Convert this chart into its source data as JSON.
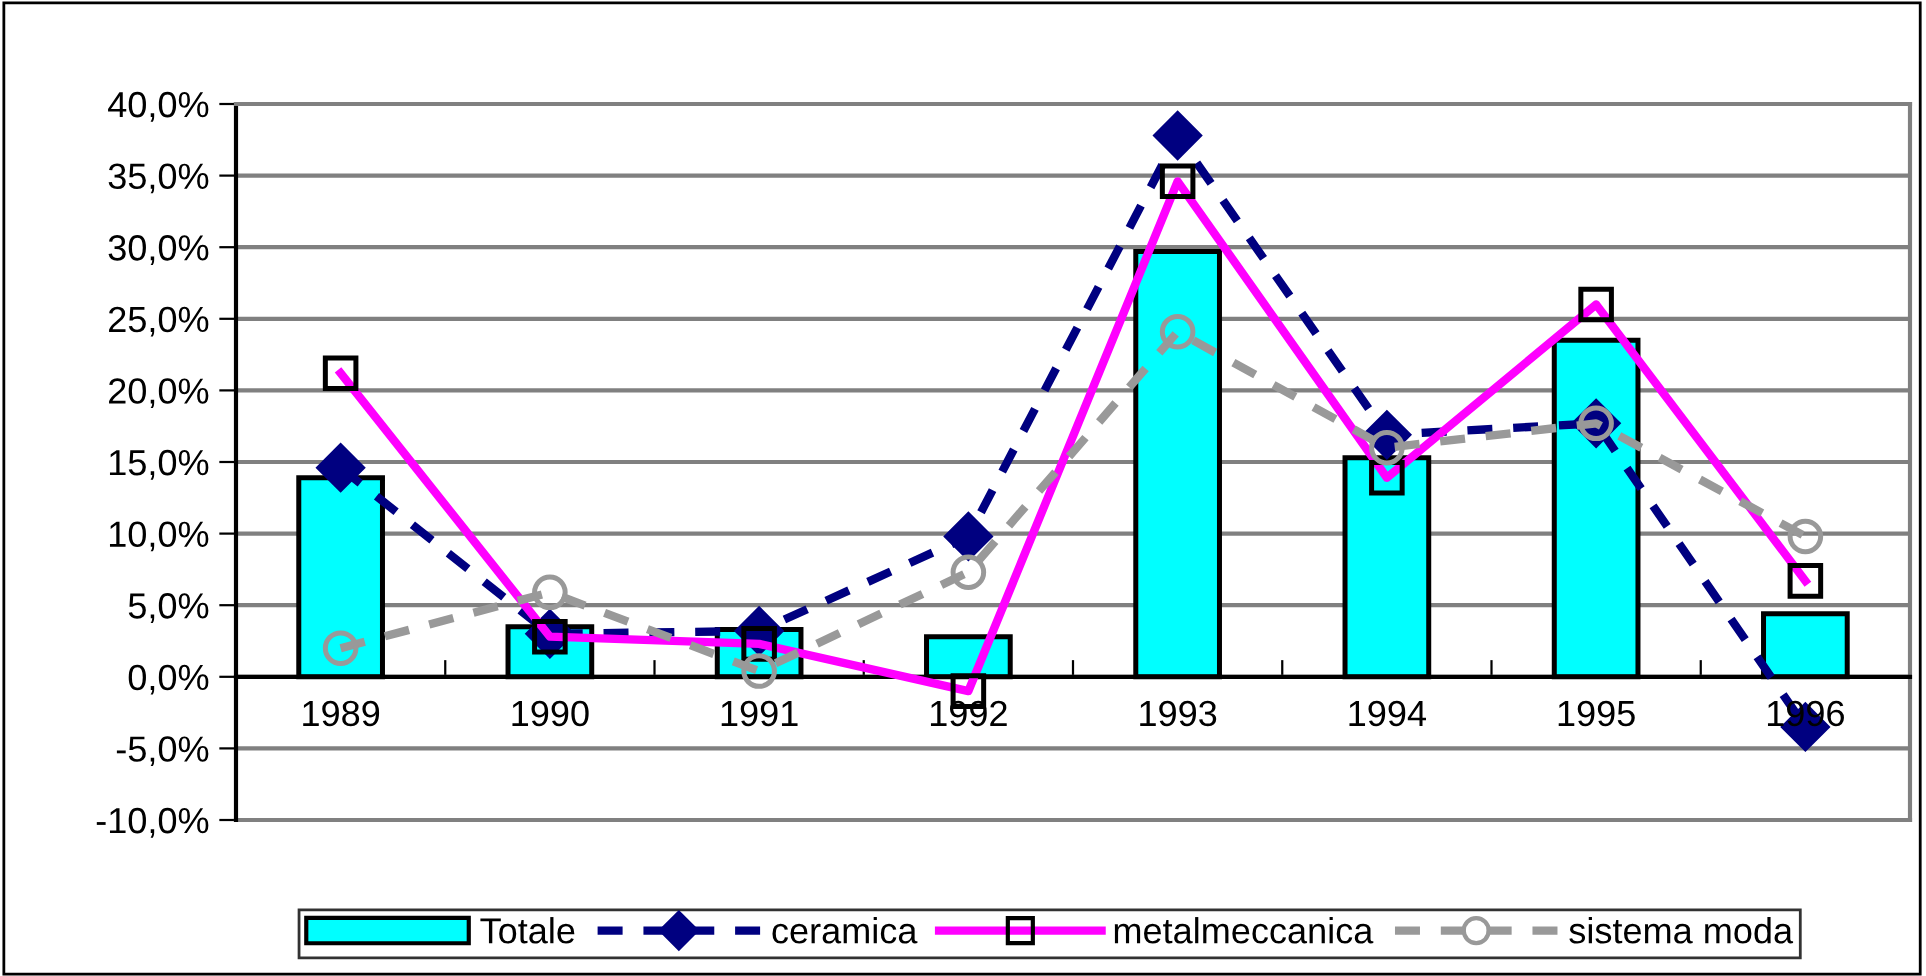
{
  "chart_data": {
    "type": "bar",
    "categories": [
      "1989",
      "1990",
      "1991",
      "1992",
      "1993",
      "1994",
      "1995",
      "1996"
    ],
    "series": [
      {
        "name": "Totale",
        "color": "#00ffff",
        "values": [
          13.9,
          3.5,
          3.3,
          2.8,
          29.7,
          15.3,
          23.5,
          4.4
        ]
      },
      {
        "name": "ceramica",
        "type": "line",
        "color": "#000080",
        "marker": "diamond",
        "line_style": "dashed",
        "values": [
          14.6,
          3.0,
          3.2,
          9.8,
          37.8,
          16.9,
          17.7,
          -3.5
        ]
      },
      {
        "name": "metalmeccanica",
        "type": "line",
        "color": "#ff00ff",
        "marker": "square",
        "line_style": "solid",
        "values": [
          21.2,
          2.8,
          2.3,
          -1.0,
          34.6,
          13.9,
          26.0,
          6.7
        ]
      },
      {
        "name": "sistema moda",
        "type": "line",
        "color": "#999999",
        "marker": "circle",
        "line_style": "dashed",
        "values": [
          2.0,
          5.9,
          0.4,
          7.3,
          24.1,
          16.0,
          17.7,
          9.8
        ]
      }
    ],
    "ylim": [
      -10,
      40
    ],
    "yticks": [
      {
        "value": -10,
        "label": "-10,0%"
      },
      {
        "value": -5,
        "label": "-5,0%"
      },
      {
        "value": 0,
        "label": "0,0%"
      },
      {
        "value": 5,
        "label": "5,0%"
      },
      {
        "value": 10,
        "label": "10,0%"
      },
      {
        "value": 15,
        "label": "15,0%"
      },
      {
        "value": 20,
        "label": "20,0%"
      },
      {
        "value": 25,
        "label": "25,0%"
      },
      {
        "value": 30,
        "label": "30,0%"
      },
      {
        "value": 35,
        "label": "35,0%"
      },
      {
        "value": 40,
        "label": "40,0%"
      }
    ],
    "grid": "y",
    "legend": "bottom"
  }
}
